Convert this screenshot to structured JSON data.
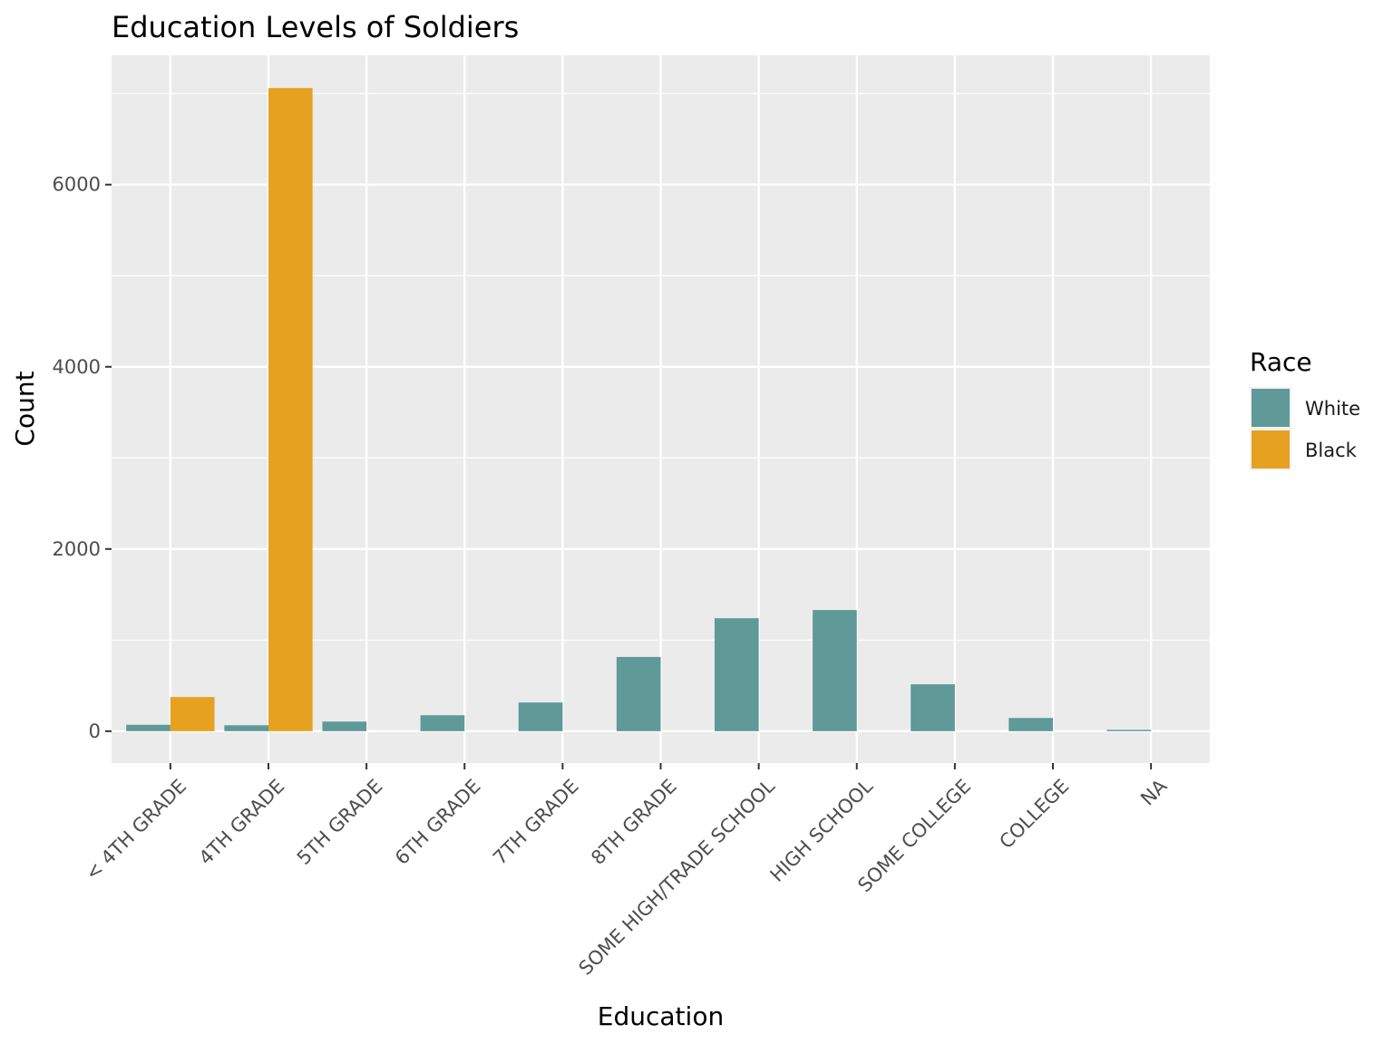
{
  "chart_data": {
    "type": "bar",
    "title": "Education Levels of Soldiers",
    "xlabel": "Education",
    "ylabel": "Count",
    "categories": [
      "< 4TH GRADE",
      "4TH GRADE",
      "5TH GRADE",
      "6TH GRADE",
      "7TH GRADE",
      "8TH GRADE",
      "SOME HIGH/TRADE SCHOOL",
      "HIGH SCHOOL",
      "SOME COLLEGE",
      "COLLEGE",
      "NA"
    ],
    "series": [
      {
        "name": "White",
        "color": "#5F9998",
        "values": [
          70,
          65,
          105,
          175,
          315,
          815,
          1240,
          1330,
          515,
          145,
          15
        ]
      },
      {
        "name": "Black",
        "color": "#E6A121",
        "values": [
          375,
          7060,
          null,
          null,
          null,
          null,
          null,
          null,
          null,
          null,
          null
        ]
      }
    ],
    "ylim": [
      -350,
      7420
    ],
    "yticks": [
      0,
      2000,
      4000,
      6000
    ],
    "grid": true,
    "legend": {
      "title": "Race",
      "position": "right"
    },
    "panel_background": "#EBEBEB"
  }
}
